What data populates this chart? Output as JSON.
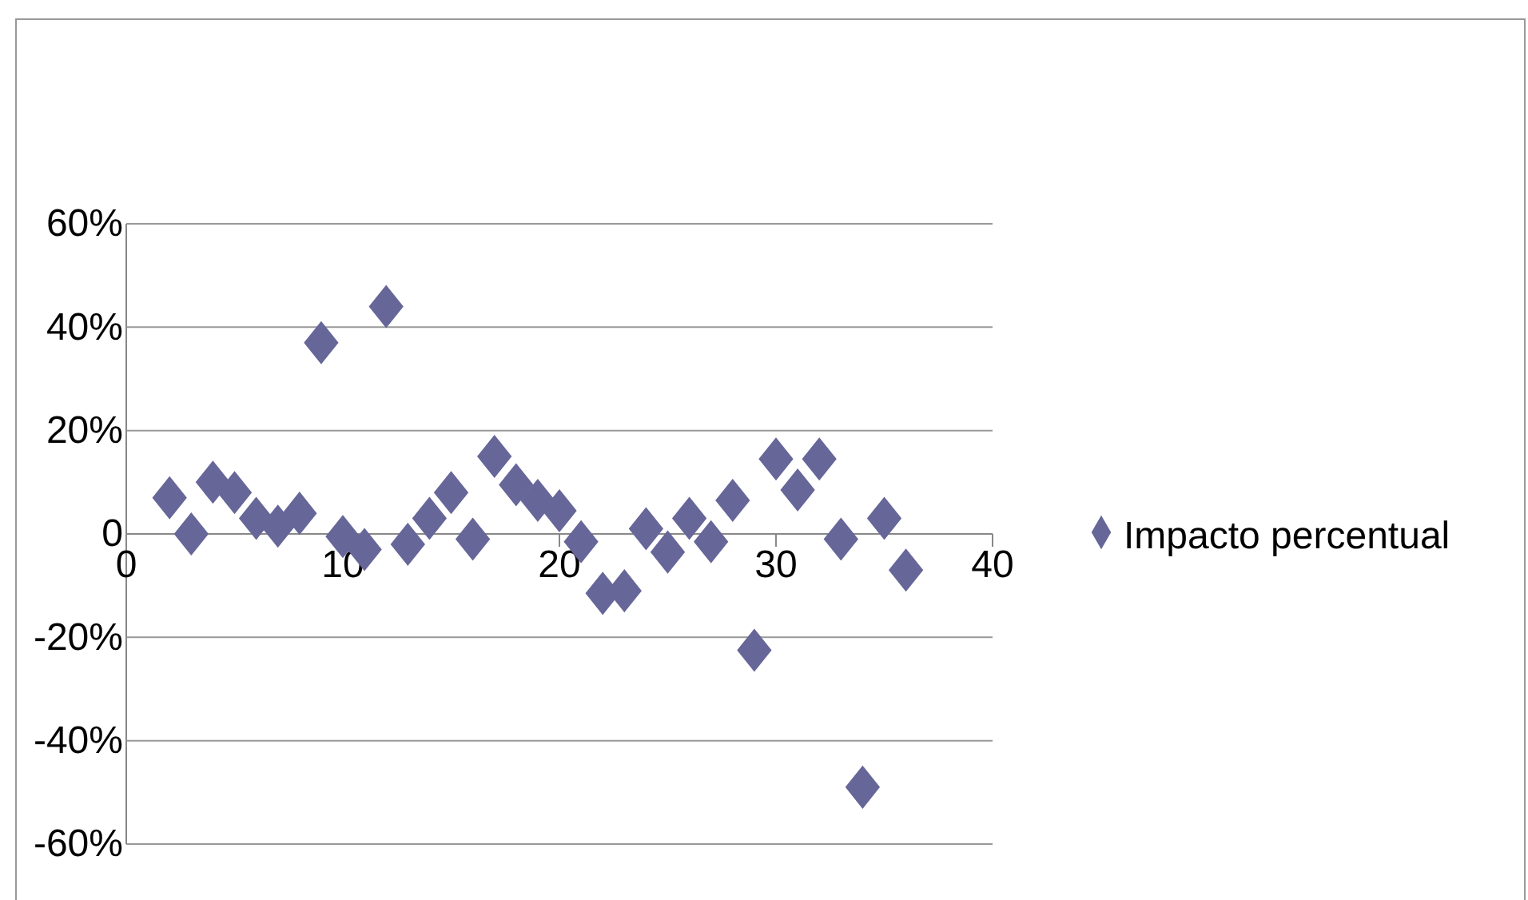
{
  "chart_data": {
    "type": "scatter",
    "x": [
      2,
      3,
      4,
      5,
      6,
      7,
      8,
      9,
      10,
      11,
      12,
      13,
      14,
      15,
      16,
      17,
      18,
      19,
      20,
      21,
      22,
      23,
      24,
      25,
      26,
      27,
      28,
      29,
      30,
      31,
      32,
      33,
      34,
      35,
      36
    ],
    "series": [
      {
        "name": "Impacto percentual",
        "color": "#666699",
        "values": [
          7,
          0,
          10,
          8,
          3,
          1.5,
          4,
          37,
          -0.5,
          -3,
          44,
          -2,
          3,
          8,
          -1,
          15,
          9.5,
          6.5,
          4.5,
          -1.5,
          -11.5,
          -11,
          1,
          -3.5,
          3,
          -1.5,
          6.5,
          -22.5,
          14.5,
          8.5,
          14.5,
          -1,
          -49,
          3,
          -7
        ]
      }
    ],
    "xlim": [
      0,
      40
    ],
    "xticks": [
      0,
      10,
      20,
      30,
      40
    ],
    "ylim": [
      -60,
      60
    ],
    "yticks": [
      {
        "value": -60,
        "label": "-60%"
      },
      {
        "value": -40,
        "label": "-40%"
      },
      {
        "value": -20,
        "label": "-20%"
      },
      {
        "value": 0,
        "label": "0"
      },
      {
        "value": 20,
        "label": "20%"
      },
      {
        "value": 40,
        "label": "40%"
      },
      {
        "value": 60,
        "label": "60%"
      }
    ],
    "grid": "y",
    "legend": "right",
    "marker": "diamond"
  }
}
